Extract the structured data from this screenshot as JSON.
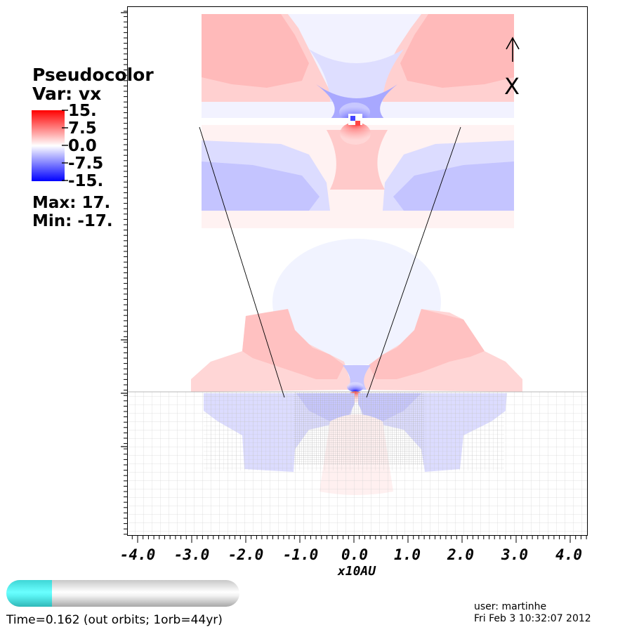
{
  "legend": {
    "title": "Pseudocolor",
    "var_label": "Var: vx",
    "ticks": [
      "15.",
      "7.5",
      "0.0",
      "-7.5",
      "-15."
    ],
    "max_label": "Max:  17.",
    "min_label": "Min: -17.",
    "colors": {
      "high": "#ff0000",
      "mid": "#ffffff",
      "low": "#0000ff"
    }
  },
  "axis": {
    "x_ticks": [
      "-4.0",
      "-3.0",
      "-2.0",
      "-1.0",
      "0.0",
      "1.0",
      "2.0",
      "3.0",
      "4.0"
    ],
    "x_title": "x10AU"
  },
  "orientation": {
    "label": "X",
    "icon": "up-arrow-icon"
  },
  "time_slider": {
    "progress": 0.162,
    "text": "Time=0.162 (out orbits; 1orb=44yr)"
  },
  "user": {
    "name_line": "user: martinhe",
    "date_line": "Fri Feb  3 10:32:07 2012"
  }
}
